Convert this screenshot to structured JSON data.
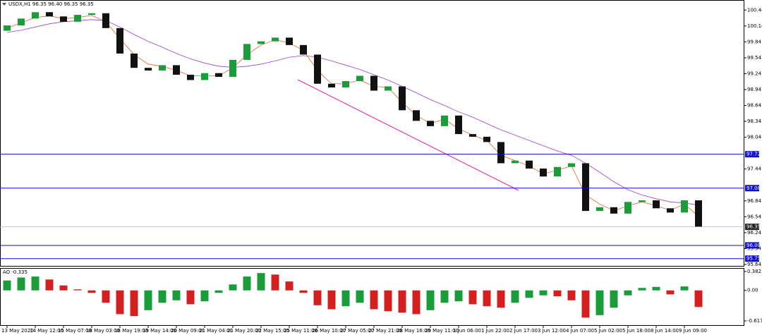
{
  "chart_data": [
    {
      "type": "candlestick",
      "title": "USDX,H1 96.35 96.40 96.35 96.35",
      "open": [
        100.05,
        100.15,
        100.28,
        100.4,
        100.32,
        100.22,
        100.35,
        100.38,
        100.1,
        99.62,
        99.35,
        99.3,
        99.4,
        99.22,
        99.12,
        99.25,
        99.18,
        99.5,
        99.8,
        99.85,
        99.92,
        99.78,
        99.6,
        99.05,
        98.98,
        99.1,
        99.2,
        98.92,
        99.0,
        98.55,
        98.35,
        98.25,
        98.45,
        98.1,
        98.05,
        97.95,
        97.55,
        97.6,
        97.45,
        97.3,
        97.48,
        97.55,
        96.65,
        96.72,
        96.6,
        96.82,
        96.85,
        96.7,
        96.62,
        96.85
      ],
      "close": [
        100.15,
        100.28,
        100.4,
        100.32,
        100.22,
        100.35,
        100.38,
        100.1,
        99.62,
        99.35,
        99.3,
        99.4,
        99.22,
        99.12,
        99.25,
        99.18,
        99.5,
        99.8,
        99.85,
        99.92,
        99.78,
        99.6,
        99.05,
        98.98,
        99.1,
        99.2,
        98.92,
        99.0,
        98.55,
        98.35,
        98.25,
        98.45,
        98.1,
        98.05,
        97.95,
        97.55,
        97.6,
        97.45,
        97.3,
        97.48,
        97.55,
        96.65,
        96.72,
        96.6,
        96.82,
        96.85,
        96.7,
        96.62,
        96.85,
        96.35
      ],
      "up_color": "#1a9c3a",
      "down_color": "#111111",
      "series": [
        {
          "color": "#e8632a",
          "values": [
            100.1,
            100.2,
            100.3,
            100.33,
            100.28,
            100.3,
            100.34,
            100.22,
            99.9,
            99.6,
            99.42,
            99.38,
            99.3,
            99.2,
            99.2,
            99.2,
            99.35,
            99.6,
            99.78,
            99.88,
            99.82,
            99.68,
            99.3,
            99.05,
            99.05,
            99.12,
            99.0,
            98.98,
            98.7,
            98.45,
            98.3,
            98.38,
            98.2,
            98.08,
            97.98,
            97.7,
            97.6,
            97.5,
            97.35,
            97.42,
            97.5,
            96.95,
            96.78,
            96.65,
            96.75,
            96.82,
            96.75,
            96.66,
            96.78,
            96.55
          ]
        },
        {
          "color": "#9b3fd6",
          "values": [
            100.02,
            100.06,
            100.12,
            100.18,
            100.22,
            100.24,
            100.26,
            100.24,
            100.12,
            99.98,
            99.85,
            99.74,
            99.62,
            99.52,
            99.44,
            99.38,
            99.36,
            99.38,
            99.42,
            99.48,
            99.55,
            99.58,
            99.55,
            99.48,
            99.4,
            99.32,
            99.22,
            99.12,
            99.0,
            98.88,
            98.75,
            98.64,
            98.52,
            98.42,
            98.3,
            98.18,
            98.08,
            97.98,
            97.88,
            97.78,
            97.7,
            97.55,
            97.38,
            97.2,
            97.05,
            96.95,
            96.88,
            96.82,
            96.8,
            96.76
          ]
        }
      ],
      "levels": [
        97.72,
        97.08,
        {
          "value": 96,
          "label": "96.00"
        },
        95.75
      ],
      "level_color": "#1010c8",
      "last": 96.35,
      "xlim": [
        -0.5,
        52.25
      ],
      "ylim": [
        95.6,
        100.63
      ],
      "yticks": [
        100.44,
        100.14,
        99.84,
        99.54,
        99.24,
        98.94,
        98.64,
        98.34,
        98.04,
        97.44,
        96.84,
        96.54,
        96.24,
        95.94,
        95.64
      ],
      "xticks": [
        {
          "value": 0,
          "label": "13 May 2020"
        },
        {
          "value": 2,
          "label": "14 May 12:00"
        },
        {
          "value": 4,
          "label": "15 May 07:00"
        },
        {
          "value": 6,
          "label": "18 May 03:00"
        },
        {
          "value": 8,
          "label": "18 May 19:00"
        },
        {
          "value": 10,
          "label": "19 May 14:00"
        },
        {
          "value": 12,
          "label": "20 May 09:00"
        },
        {
          "value": 14,
          "label": "21 May 04:00"
        },
        {
          "value": 16,
          "label": "21 May 20:00"
        },
        {
          "value": 18,
          "label": "22 May 15:00"
        },
        {
          "value": 20,
          "label": "25 May 11:00"
        },
        {
          "value": 22,
          "label": "26 May 10:00"
        },
        {
          "value": 24,
          "label": "27 May 05:00"
        },
        {
          "value": 26,
          "label": "27 May 21:00"
        },
        {
          "value": 28,
          "label": "28 May 16:00"
        },
        {
          "value": 30,
          "label": "29 May 11:00"
        },
        {
          "value": 32,
          "label": "1 Jun 06:00"
        },
        {
          "value": 34,
          "label": "1 Jun 22:00"
        },
        {
          "value": 36,
          "label": "2 Jun 17:00"
        },
        {
          "value": 38,
          "label": "3 Jun 12:00"
        },
        {
          "value": 40,
          "label": "4 Jun 07:00"
        },
        {
          "value": 42,
          "label": "5 Jun 02:00"
        },
        {
          "value": 44,
          "label": "5 Jun 18:00"
        },
        {
          "value": 46,
          "label": "8 Jun 14:00"
        },
        {
          "value": 48,
          "label": "9 Jun 09:00"
        }
      ]
    },
    {
      "type": "bar",
      "title": "AO -0.335",
      "values": [
        0.2,
        0.26,
        0.28,
        0.22,
        0.1,
        0.02,
        -0.05,
        -0.25,
        -0.48,
        -0.52,
        -0.4,
        -0.25,
        -0.2,
        -0.28,
        -0.22,
        -0.05,
        0.12,
        0.28,
        0.35,
        0.32,
        0.18,
        -0.05,
        -0.3,
        -0.38,
        -0.32,
        -0.25,
        -0.38,
        -0.42,
        -0.45,
        -0.48,
        -0.4,
        -0.25,
        -0.22,
        -0.28,
        -0.32,
        -0.35,
        -0.25,
        -0.15,
        -0.1,
        -0.12,
        -0.2,
        -0.55,
        -0.5,
        -0.35,
        -0.1,
        0.05,
        0.07,
        -0.08,
        0.08,
        -0.335
      ],
      "up_color": "#1a9c3a",
      "down_color": "#d42020",
      "xlim": [
        -0.5,
        52.25
      ],
      "ylim": [
        -0.716,
        0.438
      ],
      "yticks": [
        0.382,
        {
          "value": 0,
          "label": "0.00"
        },
        -0.617
      ]
    }
  ]
}
